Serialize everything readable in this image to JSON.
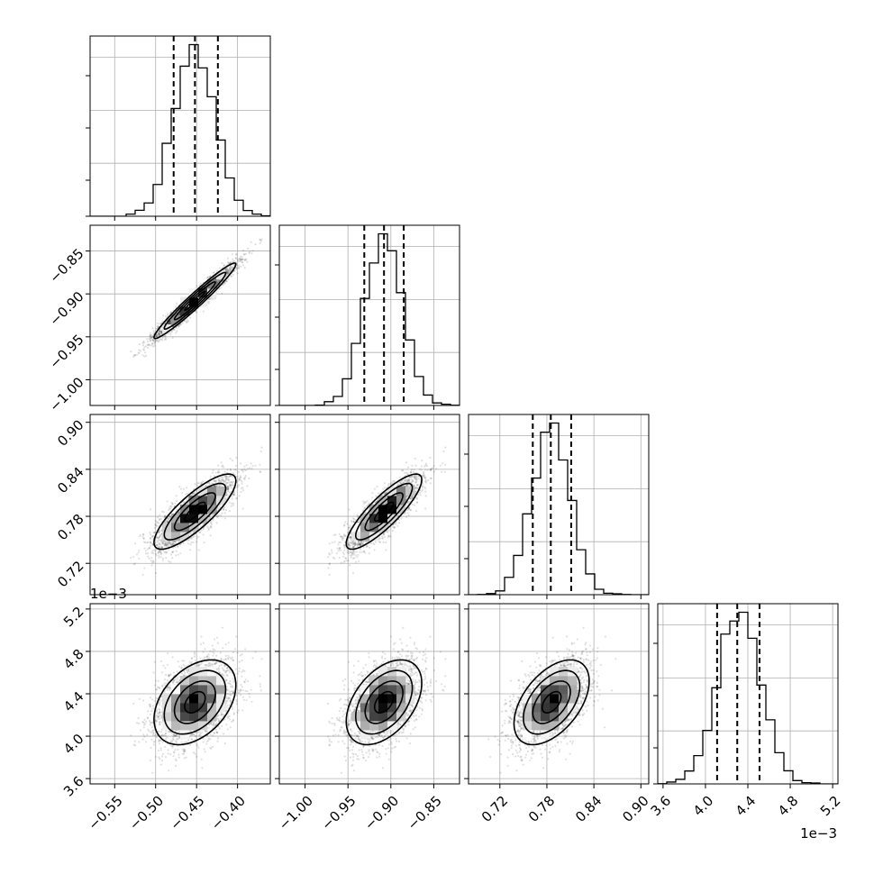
{
  "chart_data": {
    "type": "corner",
    "parameters": [
      {
        "range": [
          -0.58,
          -0.36
        ],
        "ticks": [
          -0.55,
          -0.5,
          -0.45,
          -0.4
        ],
        "tick_labels": [
          "−0.55",
          "−0.50",
          "−0.45",
          "−0.40"
        ],
        "offset_label": "",
        "mean": -0.452,
        "std": 0.025,
        "quantiles": [
          -0.478,
          -0.452,
          -0.424
        ]
      },
      {
        "range": [
          -1.03,
          -0.82
        ],
        "ticks": [
          -1.0,
          -0.95,
          -0.9,
          -0.85
        ],
        "tick_labels": [
          "−1.00",
          "−0.95",
          "−0.90",
          "−0.85"
        ],
        "offset_label": "",
        "mean": -0.908,
        "std": 0.022,
        "quantiles": [
          -0.931,
          -0.908,
          -0.885
        ]
      },
      {
        "range": [
          0.68,
          0.91
        ],
        "ticks": [
          0.72,
          0.78,
          0.84,
          0.9
        ],
        "tick_labels": [
          "0.72",
          "0.78",
          "0.84",
          "0.90"
        ],
        "offset_label": "",
        "mean": 0.786,
        "std": 0.024,
        "quantiles": [
          0.762,
          0.785,
          0.811
        ]
      },
      {
        "range": [
          3.55,
          5.25
        ],
        "ticks": [
          3.6,
          4.0,
          4.4,
          4.8,
          5.2
        ],
        "tick_labels": [
          "3.6",
          "4.0",
          "4.4",
          "4.8",
          "5.2"
        ],
        "offset_label": "1e−3",
        "mean": 4.32,
        "std": 0.2,
        "quantiles": [
          4.11,
          4.3,
          4.51
        ]
      }
    ],
    "correlations": {
      "1-0": 0.97,
      "2-0": 0.82,
      "2-1": 0.85,
      "3-0": 0.4,
      "3-1": 0.45,
      "3-2": 0.5
    },
    "histogram_bins": 20,
    "contour_levels_sigma": [
      0.5,
      1.0,
      1.5,
      2.0
    ],
    "grid": true,
    "quantile_lines": "dashed"
  }
}
